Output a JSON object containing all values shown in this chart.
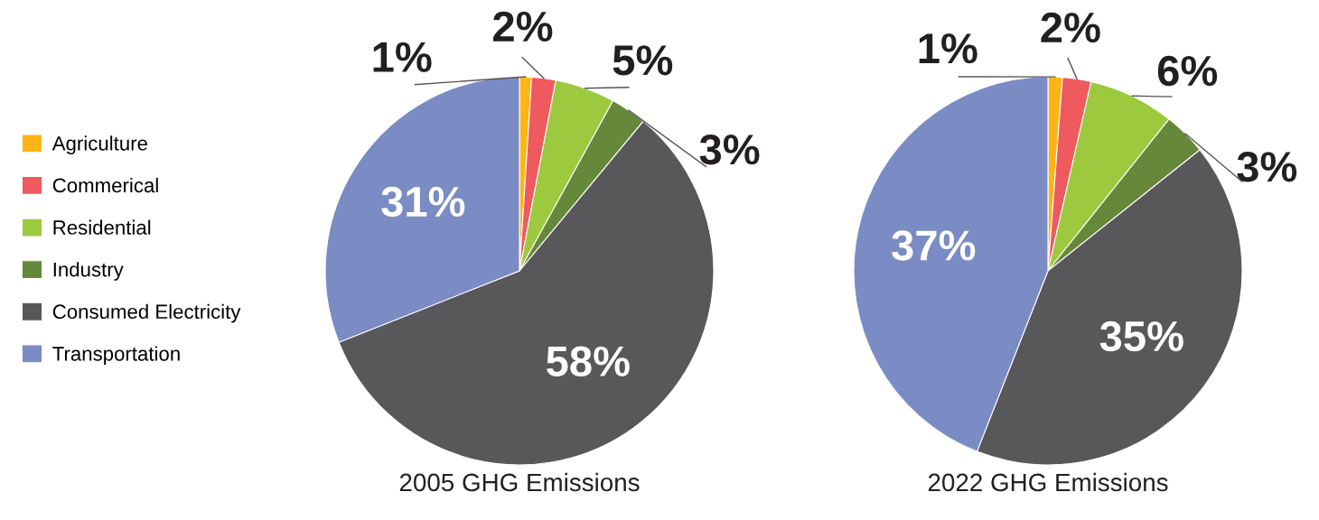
{
  "chart_data": [
    {
      "type": "pie",
      "title": "2005 GHG Emissions",
      "categories": [
        "Agriculture",
        "Commerical",
        "Residential",
        "Industry",
        "Consumed Electricity",
        "Transportation"
      ],
      "values": [
        1,
        2,
        5,
        3,
        58,
        31
      ],
      "colors": [
        "#fdb515",
        "#ef5a5f",
        "#9dc93f",
        "#66883a",
        "#58585a",
        "#7b8bc4"
      ],
      "value_labels": [
        "1%",
        "2%",
        "5%",
        "3%",
        "58%",
        "31%"
      ],
      "legend": "left"
    },
    {
      "type": "pie",
      "title": "2022 GHG Emissions",
      "categories": [
        null,
        null,
        null,
        null,
        null,
        null
      ],
      "values": [
        1,
        2,
        6,
        3,
        35,
        37
      ],
      "colors": [
        "#fdb515",
        "#ef5a5f",
        "#9dc93f",
        "#66883a",
        "#58585a",
        "#7b8bc4"
      ],
      "value_labels": [
        "1%",
        "2%",
        "6%",
        "3%",
        "35%",
        "37%"
      ]
    }
  ]
}
